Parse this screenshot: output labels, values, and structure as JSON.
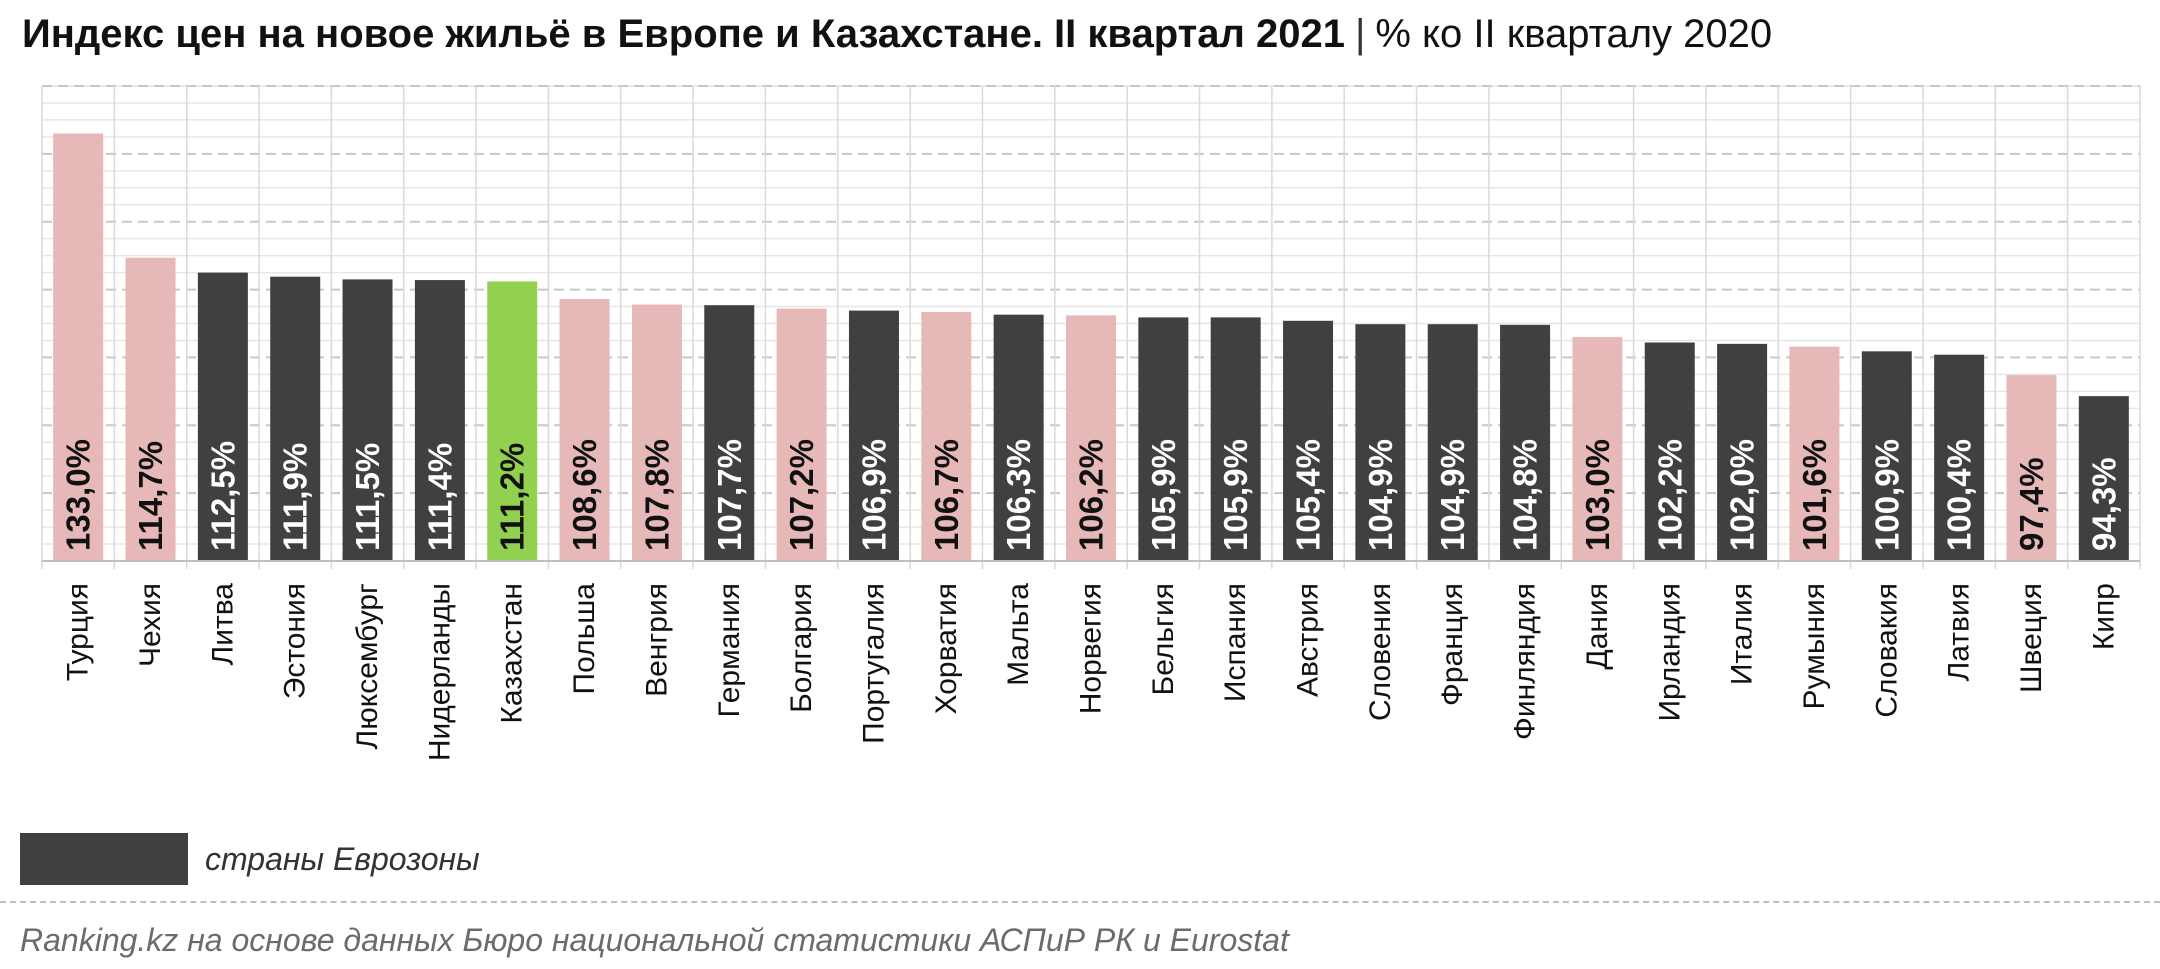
{
  "header": {
    "title": "Индекс цен на новое жильё в Европе и Казахстане. II квартал 2021",
    "separator": "|",
    "subtitle": "% ко II кварталу 2020"
  },
  "legend": {
    "label": "страны Еврозоны",
    "color": "#404040"
  },
  "source": "Ranking.kz на основе данных Бюро национальной статистики АСПиР РК и Eurostat",
  "colors": {
    "eurozone": "#404040",
    "other": "#e6b8b8",
    "kazakhstan": "#92d050",
    "grid": "#d9d9d9",
    "axis": "#bfbfbf"
  },
  "chart_data": {
    "type": "bar",
    "title": "Индекс цен на новое жильё в Европе и Казахстане. II квартал 2021",
    "subtitle": "% ко II кварталу 2020",
    "xlabel": "",
    "ylabel": "",
    "ylim": [
      70,
      140
    ],
    "grid": true,
    "legend_position": "bottom-left",
    "categories": [
      "Турция",
      "Чехия",
      "Литва",
      "Эстония",
      "Люксембург",
      "Нидерланды",
      "Казахстан",
      "Польша",
      "Венгрия",
      "Германия",
      "Болгария",
      "Португалия",
      "Хорватия",
      "Мальта",
      "Норвегия",
      "Бельгия",
      "Испания",
      "Австрия",
      "Словения",
      "Франция",
      "Финляндия",
      "Дания",
      "Ирландия",
      "Италия",
      "Румыния",
      "Словакия",
      "Латвия",
      "Швеция",
      "Кипр"
    ],
    "values": [
      133.0,
      114.7,
      112.5,
      111.9,
      111.5,
      111.4,
      111.2,
      108.6,
      107.8,
      107.7,
      107.2,
      106.9,
      106.7,
      106.3,
      106.2,
      105.9,
      105.9,
      105.4,
      104.9,
      104.9,
      104.8,
      103.0,
      102.2,
      102.0,
      101.6,
      100.9,
      100.4,
      97.4,
      94.3
    ],
    "labels": [
      "133,0%",
      "114,7%",
      "112,5%",
      "111,9%",
      "111,5%",
      "111,4%",
      "111,2%",
      "108,6%",
      "107,8%",
      "107,7%",
      "107,2%",
      "106,9%",
      "106,7%",
      "106,3%",
      "106,2%",
      "105,9%",
      "105,9%",
      "105,4%",
      "104,9%",
      "104,9%",
      "104,8%",
      "103,0%",
      "102,2%",
      "102,0%",
      "101,6%",
      "100,9%",
      "100,4%",
      "97,4%",
      "94,3%"
    ],
    "groups": [
      "other",
      "other",
      "eurozone",
      "eurozone",
      "eurozone",
      "eurozone",
      "kazakhstan",
      "other",
      "other",
      "eurozone",
      "other",
      "eurozone",
      "other",
      "eurozone",
      "other",
      "eurozone",
      "eurozone",
      "eurozone",
      "eurozone",
      "eurozone",
      "eurozone",
      "other",
      "eurozone",
      "eurozone",
      "other",
      "eurozone",
      "eurozone",
      "other",
      "eurozone"
    ]
  }
}
